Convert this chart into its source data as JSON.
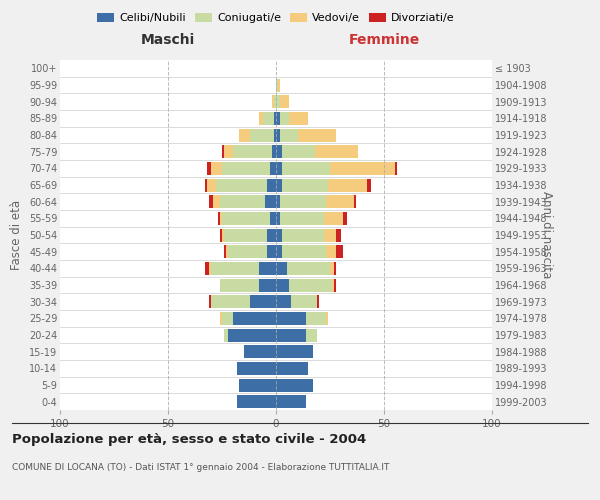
{
  "age_groups": [
    "0-4",
    "5-9",
    "10-14",
    "15-19",
    "20-24",
    "25-29",
    "30-34",
    "35-39",
    "40-44",
    "45-49",
    "50-54",
    "55-59",
    "60-64",
    "65-69",
    "70-74",
    "75-79",
    "80-84",
    "85-89",
    "90-94",
    "95-99",
    "100+"
  ],
  "birth_years": [
    "1999-2003",
    "1994-1998",
    "1989-1993",
    "1984-1988",
    "1979-1983",
    "1974-1978",
    "1969-1973",
    "1964-1968",
    "1959-1963",
    "1954-1958",
    "1949-1953",
    "1944-1948",
    "1939-1943",
    "1934-1938",
    "1929-1933",
    "1924-1928",
    "1919-1923",
    "1914-1918",
    "1909-1913",
    "1904-1908",
    "≤ 1903"
  ],
  "male": {
    "celibi": [
      18,
      17,
      18,
      15,
      22,
      20,
      12,
      8,
      8,
      4,
      4,
      3,
      5,
      4,
      3,
      2,
      1,
      1,
      0,
      0,
      0
    ],
    "coniugati": [
      0,
      0,
      0,
      0,
      2,
      5,
      18,
      18,
      22,
      18,
      20,
      22,
      21,
      24,
      22,
      18,
      11,
      5,
      1,
      0,
      0
    ],
    "vedovi": [
      0,
      0,
      0,
      0,
      0,
      1,
      0,
      0,
      1,
      1,
      1,
      1,
      3,
      4,
      5,
      4,
      5,
      2,
      1,
      0,
      0
    ],
    "divorziati": [
      0,
      0,
      0,
      0,
      0,
      0,
      1,
      0,
      2,
      1,
      1,
      1,
      2,
      1,
      2,
      1,
      0,
      0,
      0,
      0,
      0
    ]
  },
  "female": {
    "nubili": [
      14,
      17,
      15,
      17,
      14,
      14,
      7,
      6,
      5,
      3,
      3,
      2,
      2,
      3,
      3,
      3,
      2,
      2,
      0,
      0,
      0
    ],
    "coniugate": [
      0,
      0,
      0,
      0,
      5,
      9,
      12,
      20,
      20,
      20,
      19,
      20,
      21,
      21,
      22,
      15,
      8,
      4,
      2,
      1,
      0
    ],
    "vedove": [
      0,
      0,
      0,
      0,
      0,
      1,
      0,
      1,
      2,
      5,
      6,
      9,
      13,
      18,
      30,
      20,
      18,
      9,
      4,
      1,
      0
    ],
    "divorziate": [
      0,
      0,
      0,
      0,
      0,
      0,
      1,
      1,
      1,
      3,
      2,
      2,
      1,
      2,
      1,
      0,
      0,
      0,
      0,
      0,
      0
    ]
  },
  "colors": {
    "celibi": "#3e6ea6",
    "coniugati": "#c8dba2",
    "vedovi": "#f5cb7e",
    "divorziati": "#cc2222"
  },
  "xlim": 100,
  "title": "Popolazione per età, sesso e stato civile - 2004",
  "subtitle": "COMUNE DI LOCANA (TO) - Dati ISTAT 1° gennaio 2004 - Elaborazione TUTTITALIA.IT",
  "ylabel_left": "Fasce di età",
  "ylabel_right": "Anni di nascita",
  "xlabel_left": "Maschi",
  "xlabel_right": "Femmine",
  "bg_color": "#f0f0f0",
  "plot_bg": "#ffffff"
}
